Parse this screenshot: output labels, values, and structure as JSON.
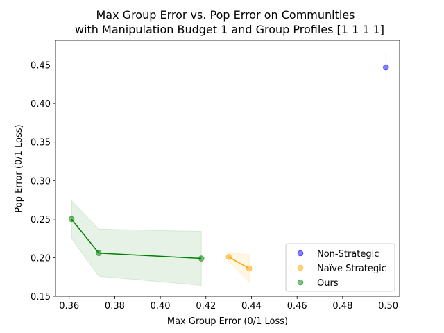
{
  "chart_data": {
    "type": "scatter",
    "title_lines": [
      "Max Group Error vs. Pop Error on Communities",
      "with Manipulation Budget 1 and Group Profiles [1 1 1 1]"
    ],
    "xlabel": "Max Group Error (0/1 Loss)",
    "ylabel": "Pop Error (0/1 Loss)",
    "xlim": [
      0.354,
      0.505
    ],
    "ylim": [
      0.15,
      0.482
    ],
    "xticks": [
      "0.36",
      "0.38",
      "0.40",
      "0.42",
      "0.44",
      "0.46",
      "0.48",
      "0.50"
    ],
    "yticks": [
      "0.15",
      "0.20",
      "0.25",
      "0.30",
      "0.35",
      "0.40",
      "0.45"
    ],
    "grid": false,
    "legend_position": "lower-right",
    "series": [
      {
        "name": "Non-Strategic",
        "color": "#0000ff",
        "connected": false,
        "points": [
          {
            "x": 0.499,
            "y": 0.447,
            "lo": 0.429,
            "hi": 0.466
          }
        ]
      },
      {
        "name": "Naïve Strategic",
        "color": "#ffa500",
        "connected": true,
        "points": [
          {
            "x": 0.43,
            "y": 0.201,
            "lo": 0.195,
            "hi": 0.206
          },
          {
            "x": 0.439,
            "y": 0.186,
            "lo": 0.168,
            "hi": 0.204
          }
        ]
      },
      {
        "name": "Ours",
        "color": "#008000",
        "connected": true,
        "points": [
          {
            "x": 0.361,
            "y": 0.25,
            "lo": 0.225,
            "hi": 0.274
          },
          {
            "x": 0.373,
            "y": 0.206,
            "lo": 0.176,
            "hi": 0.237
          },
          {
            "x": 0.418,
            "y": 0.199,
            "lo": 0.164,
            "hi": 0.234
          }
        ]
      }
    ]
  }
}
